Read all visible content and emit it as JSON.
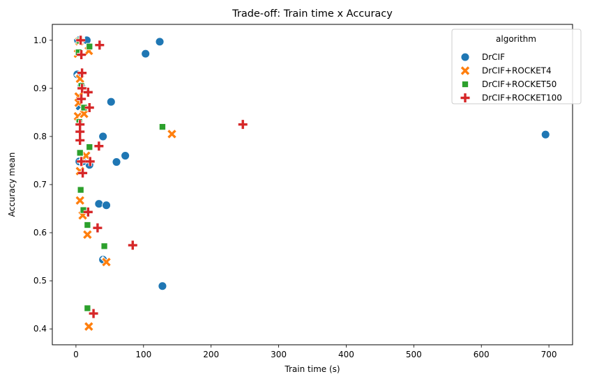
{
  "chart_data": {
    "type": "scatter",
    "title": "Trade-off: Train time x Accuracy",
    "xlabel": "Train time (s)",
    "ylabel": "Accuracy mean",
    "xlim": [
      -35,
      735
    ],
    "ylim": [
      0.367,
      1.033
    ],
    "x_ticks": [
      0,
      100,
      200,
      300,
      400,
      500,
      600,
      700
    ],
    "y_ticks": [
      0.4,
      0.5,
      0.6,
      0.7,
      0.8,
      0.9,
      1.0
    ],
    "grid": false,
    "legend": {
      "title": "algorithm",
      "placement": "top-right"
    },
    "series": [
      {
        "name": "DrCIF",
        "color": "#1f77b4",
        "marker": "circle",
        "points": [
          [
            3,
            1.0
          ],
          [
            16,
            1.0
          ],
          [
            124,
            0.997
          ],
          [
            103,
            0.972
          ],
          [
            2,
            0.929
          ],
          [
            8,
            0.905
          ],
          [
            5,
            0.862
          ],
          [
            52,
            0.872
          ],
          [
            40,
            0.8
          ],
          [
            73,
            0.76
          ],
          [
            60,
            0.747
          ],
          [
            5,
            0.748
          ],
          [
            20,
            0.741
          ],
          [
            10,
            0.748
          ],
          [
            34,
            0.66
          ],
          [
            45,
            0.657
          ],
          [
            40,
            0.544
          ],
          [
            128,
            0.489
          ],
          [
            695,
            0.804
          ]
        ]
      },
      {
        "name": "DrCIF+ROCKET4",
        "color": "#ff7f0e",
        "marker": "x",
        "points": [
          [
            5,
            0.998
          ],
          [
            19,
            0.978
          ],
          [
            3,
            0.972
          ],
          [
            6,
            0.92
          ],
          [
            4,
            0.883
          ],
          [
            3,
            0.842
          ],
          [
            12,
            0.847
          ],
          [
            4,
            0.87
          ],
          [
            142,
            0.805
          ],
          [
            15,
            0.76
          ],
          [
            6,
            0.728
          ],
          [
            6,
            0.667
          ],
          [
            10,
            0.636
          ],
          [
            17,
            0.596
          ],
          [
            45,
            0.539
          ],
          [
            19,
            0.405
          ]
        ]
      },
      {
        "name": "DrCIF+ROCKET50",
        "color": "#2ca02c",
        "marker": "square",
        "points": [
          [
            5,
            0.999
          ],
          [
            20,
            0.987
          ],
          [
            4,
            0.975
          ],
          [
            8,
            0.905
          ],
          [
            12,
            0.86
          ],
          [
            5,
            0.83
          ],
          [
            128,
            0.82
          ],
          [
            20,
            0.778
          ],
          [
            6,
            0.766
          ],
          [
            7,
            0.689
          ],
          [
            11,
            0.647
          ],
          [
            17,
            0.616
          ],
          [
            42,
            0.572
          ],
          [
            17,
            0.443
          ]
        ]
      },
      {
        "name": "DrCIF+ROCKET100",
        "color": "#d62728",
        "marker": "plus",
        "points": [
          [
            7,
            1.0
          ],
          [
            35,
            0.99
          ],
          [
            8,
            0.97
          ],
          [
            9,
            0.932
          ],
          [
            9,
            0.9
          ],
          [
            18,
            0.892
          ],
          [
            8,
            0.878
          ],
          [
            20,
            0.86
          ],
          [
            6,
            0.825
          ],
          [
            6,
            0.81
          ],
          [
            247,
            0.825
          ],
          [
            6,
            0.792
          ],
          [
            34,
            0.78
          ],
          [
            8,
            0.748
          ],
          [
            21,
            0.748
          ],
          [
            10,
            0.724
          ],
          [
            18,
            0.643
          ],
          [
            32,
            0.61
          ],
          [
            84,
            0.574
          ],
          [
            26,
            0.432
          ]
        ]
      }
    ]
  }
}
